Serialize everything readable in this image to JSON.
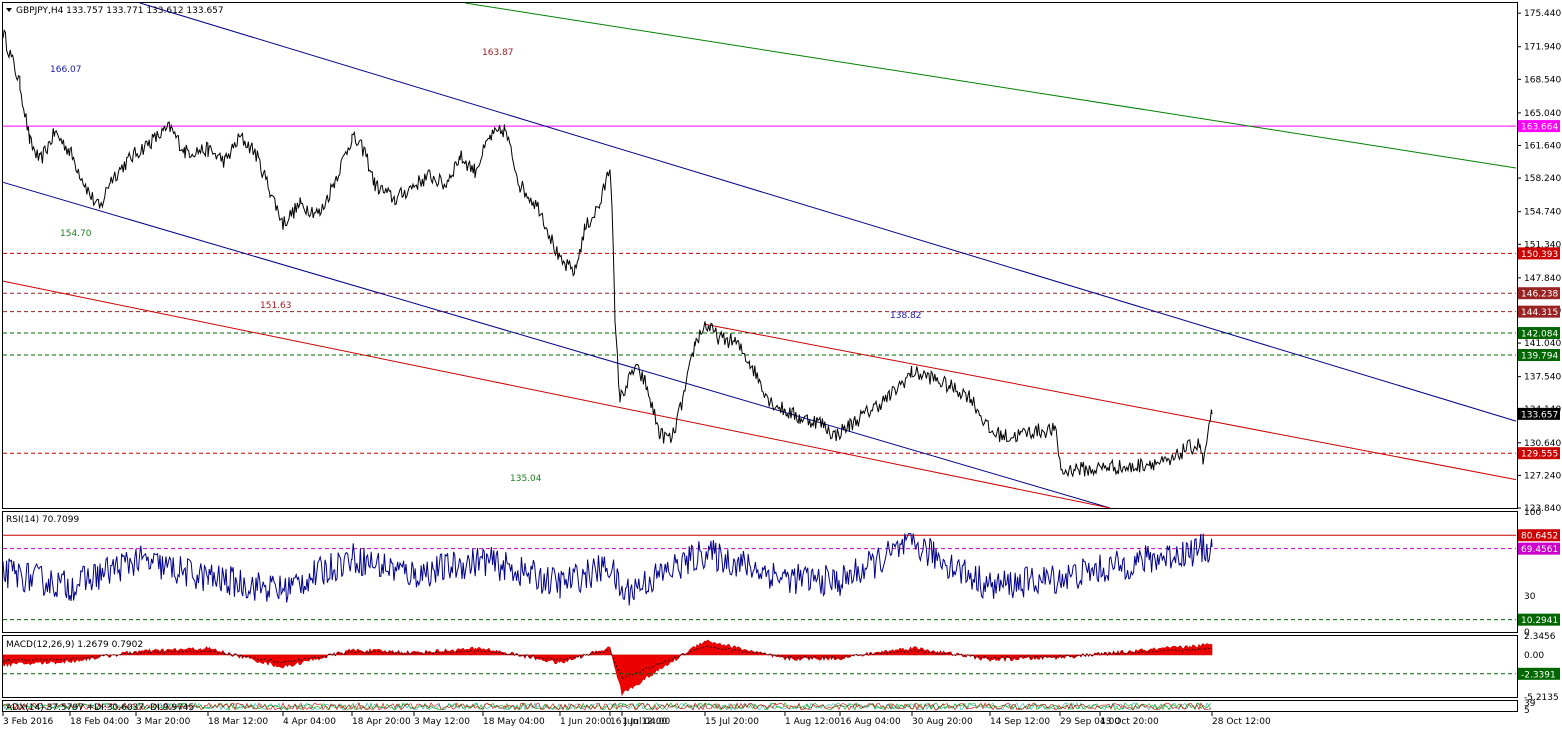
{
  "header": {
    "symbol_line": "GBPJPY,H4  133.757 133.771 133.612 133.657"
  },
  "main_axis": {
    "ticks": [
      "175.440",
      "171.940",
      "168.540",
      "165.040",
      "161.640",
      "158.240",
      "154.740",
      "151.340",
      "147.840",
      "144.440",
      "141.040",
      "137.540",
      "134.140",
      "130.640",
      "127.240",
      "123.840"
    ]
  },
  "main_price_tags": [
    {
      "label": "163.664",
      "color": "#ff00ff",
      "value": 163.664
    },
    {
      "label": "150.393",
      "color": "#cc0000",
      "value": 150.393
    },
    {
      "label": "146.238",
      "color": "#992222",
      "value": 146.238
    },
    {
      "label": "144.315",
      "color": "#992222",
      "value": 144.315
    },
    {
      "label": "142.084",
      "color": "#006600",
      "value": 142.084
    },
    {
      "label": "139.794",
      "color": "#006600",
      "value": 139.794
    },
    {
      "label": "133.657",
      "color": "#000000",
      "value": 133.657
    },
    {
      "label": "129.555",
      "color": "#cc0000",
      "value": 129.555
    }
  ],
  "annotations": [
    {
      "text": "166.07",
      "color": "#1a1ab0"
    },
    {
      "text": "163.87",
      "color": "#a02020"
    },
    {
      "text": "154.70",
      "color": "#208020"
    },
    {
      "text": "151.63",
      "color": "#a02020"
    },
    {
      "text": "138.82",
      "color": "#1a1ab0"
    },
    {
      "text": "135.04",
      "color": "#208020"
    }
  ],
  "rsi": {
    "title": "RSI(14) 70.7099",
    "axis": [
      "100",
      "30",
      "0"
    ],
    "tags": [
      {
        "label": "80.6452",
        "color": "#cc0000"
      },
      {
        "label": "69.4561",
        "color": "#cc00cc"
      },
      {
        "label": "10.2941",
        "color": "#006600"
      }
    ]
  },
  "macd": {
    "title": "MACD(12,26,9) 1.2679 0.7902",
    "axis": [
      "2.3456",
      "0.00",
      "-5.2135"
    ],
    "tags": [
      {
        "label": "-2.3391",
        "color": "#006600"
      }
    ]
  },
  "adx": {
    "title": "ADX(14) 37.5797 +DI:30.6037 -DI:9.9745",
    "axis": [
      "39",
      "5"
    ]
  },
  "x_axis": {
    "labels": [
      "3 Feb 2016",
      "18 Feb 04:00",
      "3 Mar 20:00",
      "18 Mar 12:00",
      "4 Apr 04:00",
      "18 Apr 20:00",
      "3 May 12:00",
      "18 May 04:00",
      "1 Jun 20:00",
      "16 Jun 12:00",
      "1 Jul 04:00",
      "15 Jul 20:00",
      "1 Aug 12:00",
      "16 Aug 04:00",
      "30 Aug 20:00",
      "14 Sep 12:00",
      "29 Sep 04:00",
      "13 Oct 20:00",
      "28 Oct 12:00"
    ]
  },
  "chart_data": [
    {
      "type": "line",
      "name": "GBPJPY H4 price",
      "x": [
        "3 Feb 2016",
        "18 Feb 04:00",
        "3 Mar 20:00",
        "18 Mar 12:00",
        "4 Apr 04:00",
        "18 Apr 20:00",
        "3 May 12:00",
        "18 May 04:00",
        "1 Jun 20:00",
        "16 Jun 12:00",
        "1 Jul 04:00",
        "15 Jul 20:00",
        "1 Aug 12:00",
        "16 Aug 04:00",
        "30 Aug 20:00",
        "14 Sep 12:00",
        "29 Sep 04:00",
        "13 Oct 20:00",
        "28 Oct 12:00"
      ],
      "series": [
        {
          "values": [
            173.5,
            156.5,
            160.3,
            161.2,
            156.2,
            160.8,
            157.5,
            160.4,
            154.8,
            158.0,
            135.2,
            141.0,
            134.0,
            131.4,
            136.8,
            131.8,
            130.0,
            128.5,
            133.657
          ]
        }
      ],
      "ylim": [
        123.84,
        176.5
      ],
      "reference_levels": [
        163.664,
        150.393,
        146.238,
        144.315,
        142.084,
        139.794,
        129.555
      ]
    },
    {
      "type": "line",
      "name": "RSI(14)",
      "x": [
        "3 Feb 2016",
        "18 Feb 04:00",
        "3 Mar 20:00",
        "18 Mar 12:00",
        "4 Apr 04:00",
        "18 Apr 20:00",
        "3 May 12:00",
        "18 May 04:00",
        "1 Jun 20:00",
        "16 Jun 12:00",
        "1 Jul 04:00",
        "15 Jul 20:00",
        "1 Aug 12:00",
        "16 Aug 04:00",
        "30 Aug 20:00",
        "14 Sep 12:00",
        "29 Sep 04:00",
        "13 Oct 20:00",
        "28 Oct 12:00"
      ],
      "series": [
        {
          "values": [
            50,
            38,
            60,
            45,
            35,
            62,
            48,
            60,
            40,
            55,
            32,
            66,
            45,
            42,
            74,
            38,
            45,
            52,
            70.7099
          ]
        }
      ],
      "ylim": [
        0,
        100
      ],
      "reference_levels": [
        80.6452,
        69.4561,
        10.2941
      ]
    },
    {
      "type": "area",
      "name": "MACD(12,26,9)",
      "x": [
        "3 Feb 2016",
        "18 Feb 04:00",
        "3 Mar 20:00",
        "18 Mar 12:00",
        "4 Apr 04:00",
        "18 Apr 20:00",
        "3 May 12:00",
        "18 May 04:00",
        "1 Jun 20:00",
        "16 Jun 12:00",
        "1 Jul 04:00",
        "15 Jul 20:00",
        "1 Aug 12:00",
        "16 Aug 04:00",
        "30 Aug 20:00",
        "14 Sep 12:00",
        "29 Sep 04:00",
        "13 Oct 20:00",
        "28 Oct 12:00"
      ],
      "series": [
        {
          "values": [
            -1.2,
            -0.8,
            0.4,
            0.8,
            -1.5,
            0.6,
            0.3,
            0.8,
            -1.0,
            0.9,
            -4.8,
            1.8,
            -0.5,
            -0.4,
            0.9,
            -0.6,
            -0.3,
            0.1,
            1.2679
          ]
        }
      ],
      "ylim": [
        -5.2135,
        2.3456
      ],
      "reference_levels": [
        -2.3391
      ]
    }
  ]
}
